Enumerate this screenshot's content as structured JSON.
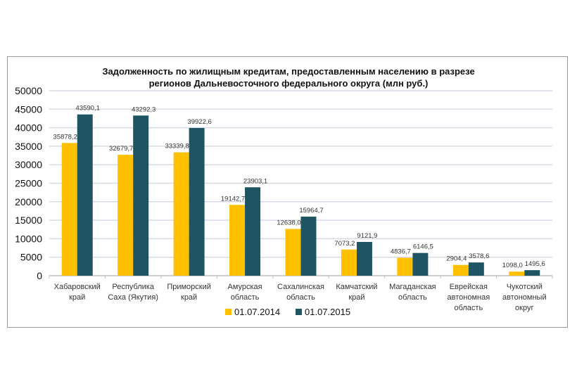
{
  "chart_data": {
    "type": "bar",
    "title": [
      "Задолженность по жилищным кредитам, предоставленным населению в разрезе",
      "регионов Дальневосточного федерального округа (млн руб.)"
    ],
    "categories": [
      [
        "Хабаровский",
        "край"
      ],
      [
        "Республика",
        "Саха (Якутия)"
      ],
      [
        "Приморский",
        "край"
      ],
      [
        "Амурская",
        "область"
      ],
      [
        "Сахалинская",
        "область"
      ],
      [
        "Камчатский",
        "край"
      ],
      [
        "Магаданская",
        "область"
      ],
      [
        "Еврейская",
        "автономная",
        "область"
      ],
      [
        "Чукотский",
        "автономный",
        "округ"
      ]
    ],
    "series": [
      {
        "name": "01.07.2014",
        "color": "#FFC000",
        "values": [
          35878.2,
          32679.7,
          33339.8,
          19142.7,
          12638.0,
          7073.2,
          4836.7,
          2904.4,
          1098.0
        ],
        "labels": [
          "35878,2",
          "32679,7",
          "33339,8",
          "19142,7",
          "12638,0",
          "7073,2",
          "4836,7",
          "2904,4",
          "1098,0"
        ]
      },
      {
        "name": "01.07.2015",
        "color": "#1F5563",
        "values": [
          43590.1,
          43292.3,
          39922.6,
          23903.1,
          15964.7,
          9121.9,
          6146.5,
          3578.6,
          1495.6
        ],
        "labels": [
          "43590,1",
          "43292,3",
          "39922,6",
          "23903,1",
          "15964,7",
          "9121,9",
          "6146,5",
          "3578,6",
          "1495,6"
        ]
      }
    ],
    "yticks": [
      "0",
      "5000",
      "10000",
      "15000",
      "20000",
      "25000",
      "30000",
      "35000",
      "40000",
      "45000",
      "50000"
    ],
    "ylim": [
      0,
      50000
    ],
    "grid": true,
    "legend": "bottom",
    "xlabel": "",
    "ylabel": ""
  }
}
